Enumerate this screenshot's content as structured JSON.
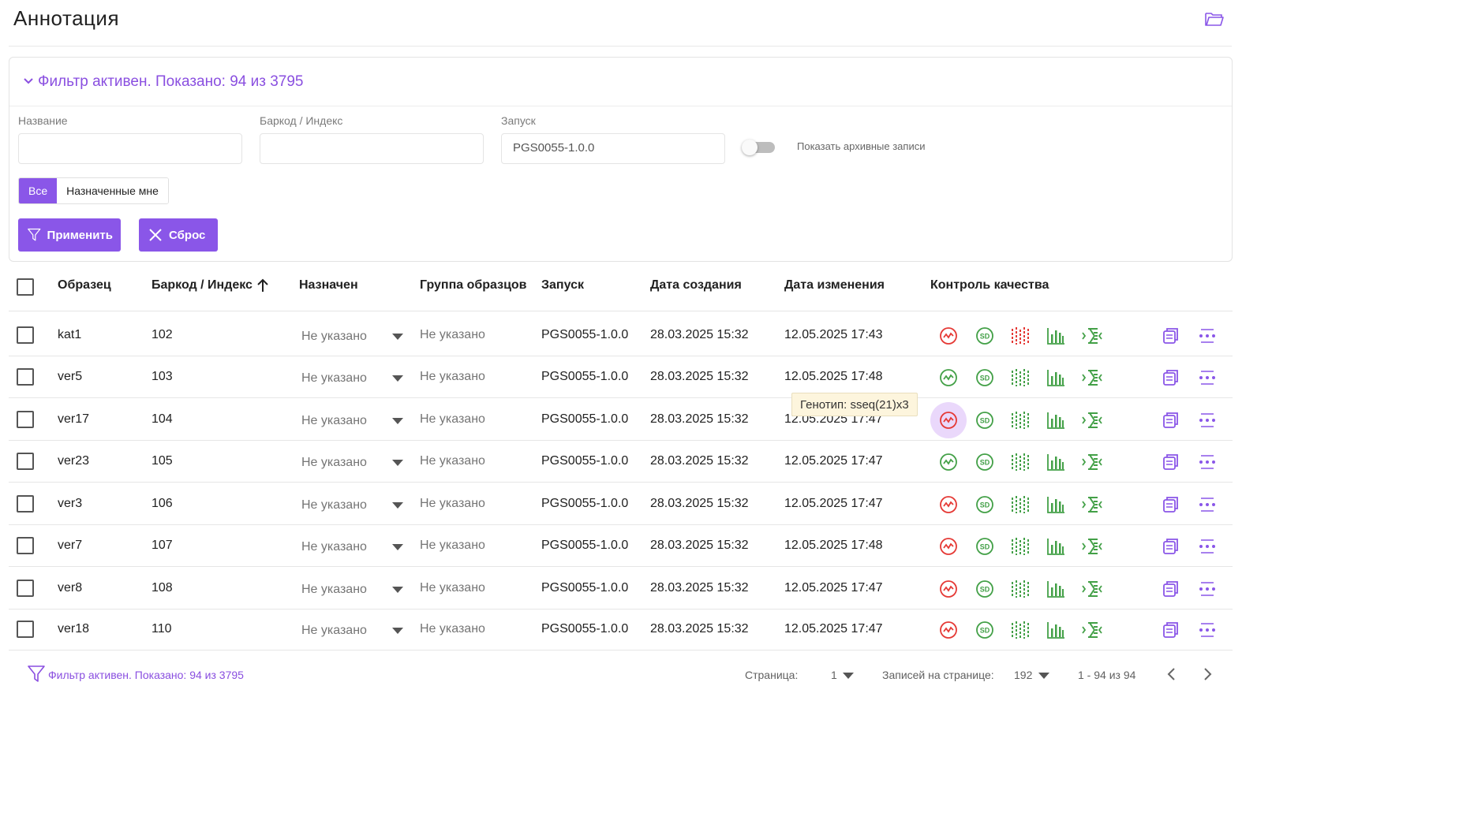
{
  "page": {
    "title": "Аннотация"
  },
  "colors": {
    "accent": "#8a56e8",
    "danger": "#e53935",
    "success": "#43a047"
  },
  "icons": {
    "folder": "folder-open-icon"
  },
  "filter": {
    "summary": "Фильтр активен. Показано: 94 из 3795",
    "fields": [
      {
        "label": "Название",
        "value": ""
      },
      {
        "label": "Баркод / Индекс",
        "value": ""
      },
      {
        "label": "Запуск",
        "value": "PGS0055-1.0.0"
      }
    ],
    "archive_label": "Показать архивные записи",
    "archive_on": false,
    "scope": [
      "Все",
      "Назначенные мне"
    ],
    "scope_active": "Все",
    "apply_label": "Применить",
    "reset_label": "Сброс"
  },
  "table": {
    "columns": [
      "Образец",
      "Баркод / Индекс",
      "Назначен",
      "Группа образцов",
      "Запуск",
      "Дата создания",
      "Дата изменения",
      "Контроль качества"
    ],
    "sort": {
      "column": "Баркод / Индекс",
      "direction": "asc"
    },
    "rows": [
      {
        "sample": "kat1",
        "barcode": "102",
        "assigned": "Не указано",
        "group": "Не указано",
        "run": "PGS0055-1.0.0",
        "created": "28.03.2025 15:32",
        "modified": "12.05.2025 17:43",
        "qc": [
          "bad",
          "ok",
          "bad",
          "ok",
          "ok"
        ]
      },
      {
        "sample": "ver5",
        "barcode": "103",
        "assigned": "Не указано",
        "group": "Не указано",
        "run": "PGS0055-1.0.0",
        "created": "28.03.2025 15:32",
        "modified": "12.05.2025 17:48",
        "qc": [
          "ok",
          "ok",
          "ok",
          "ok",
          "ok"
        ]
      },
      {
        "sample": "ver17",
        "barcode": "104",
        "assigned": "Не указано",
        "group": "Не указано",
        "run": "PGS0055-1.0.0",
        "created": "28.03.2025 15:32",
        "modified": "12.05.2025 17:47",
        "qc": [
          "bad",
          "ok",
          "ok",
          "ok",
          "ok"
        ],
        "hover": true
      },
      {
        "sample": "ver23",
        "barcode": "105",
        "assigned": "Не указано",
        "group": "Не указано",
        "run": "PGS0055-1.0.0",
        "created": "28.03.2025 15:32",
        "modified": "12.05.2025 17:47",
        "qc": [
          "ok",
          "ok",
          "ok",
          "ok",
          "ok"
        ]
      },
      {
        "sample": "ver3",
        "barcode": "106",
        "assigned": "Не указано",
        "group": "Не указано",
        "run": "PGS0055-1.0.0",
        "created": "28.03.2025 15:32",
        "modified": "12.05.2025 17:47",
        "qc": [
          "bad",
          "ok",
          "ok",
          "ok",
          "ok"
        ]
      },
      {
        "sample": "ver7",
        "barcode": "107",
        "assigned": "Не указано",
        "group": "Не указано",
        "run": "PGS0055-1.0.0",
        "created": "28.03.2025 15:32",
        "modified": "12.05.2025 17:48",
        "qc": [
          "bad",
          "ok",
          "ok",
          "ok",
          "ok"
        ]
      },
      {
        "sample": "ver8",
        "barcode": "108",
        "assigned": "Не указано",
        "group": "Не указано",
        "run": "PGS0055-1.0.0",
        "created": "28.03.2025 15:32",
        "modified": "12.05.2025 17:47",
        "qc": [
          "bad",
          "ok",
          "ok",
          "ok",
          "ok"
        ]
      },
      {
        "sample": "ver18",
        "barcode": "110",
        "assigned": "Не указано",
        "group": "Не указано",
        "run": "PGS0055-1.0.0",
        "created": "28.03.2025 15:32",
        "modified": "12.05.2025 17:47",
        "qc": [
          "bad",
          "ok",
          "ok",
          "ok",
          "ok"
        ]
      }
    ],
    "qc_icons": [
      "genotype-icon",
      "sd-icon",
      "signal-icon",
      "bar-chart-icon",
      "alignment-icon"
    ],
    "row_action_icons": [
      "copy-icon",
      "more-icon"
    ]
  },
  "tooltip": {
    "text": "Генотип: sseq(21)x3"
  },
  "footer": {
    "filter_summary": "Фильтр активен. Показано: 94 из 3795",
    "page_label": "Страница:",
    "page_value": "1",
    "per_page_label": "Записей на странице:",
    "per_page_value": "192",
    "range": "1 - 94 из 94"
  }
}
